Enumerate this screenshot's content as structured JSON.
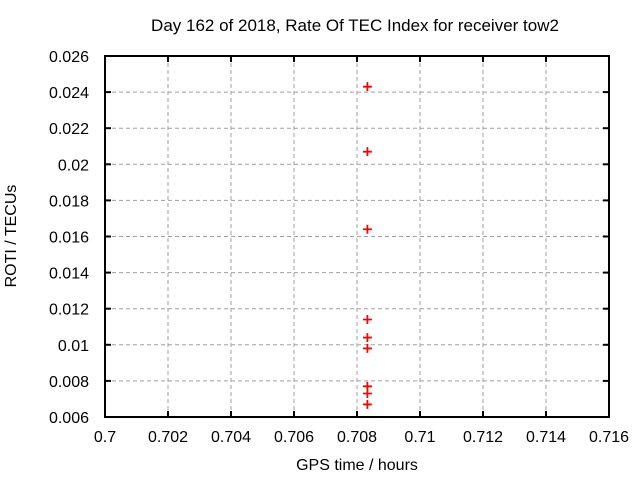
{
  "chart_data": {
    "type": "scatter",
    "title": "Day 162 of 2018, Rate Of TEC Index for receiver tow2",
    "xlabel": "GPS time / hours",
    "ylabel": "ROTI / TECUs",
    "xlim": [
      0.7,
      0.716
    ],
    "ylim": [
      0.006,
      0.026
    ],
    "grid": true,
    "legend_position": "none",
    "marker": {
      "shape": "plus",
      "color": "#ff0000"
    },
    "xticks": {
      "values": [
        0.7,
        0.702,
        0.704,
        0.706,
        0.708,
        0.71,
        0.712,
        0.714,
        0.716
      ],
      "labels": [
        "0.7",
        "0.702",
        "0.704",
        "0.706",
        "0.708",
        "0.71",
        "0.712",
        "0.714",
        "0.716"
      ]
    },
    "yticks": {
      "values": [
        0.006,
        0.008,
        0.01,
        0.012,
        0.014,
        0.016,
        0.018,
        0.02,
        0.022,
        0.024,
        0.026
      ],
      "labels": [
        "0.006",
        "0.008",
        "0.01",
        "0.012",
        "0.014",
        "0.016",
        "0.018",
        "0.02",
        "0.022",
        "0.024",
        "0.026"
      ]
    },
    "series": [
      {
        "name": "ROTI",
        "points": [
          {
            "x": 0.70833,
            "y": 0.0243
          },
          {
            "x": 0.70833,
            "y": 0.0207
          },
          {
            "x": 0.70833,
            "y": 0.0164
          },
          {
            "x": 0.70833,
            "y": 0.0114
          },
          {
            "x": 0.70833,
            "y": 0.0104
          },
          {
            "x": 0.70833,
            "y": 0.0098
          },
          {
            "x": 0.70833,
            "y": 0.0077
          },
          {
            "x": 0.70833,
            "y": 0.0073
          },
          {
            "x": 0.70833,
            "y": 0.0067
          }
        ]
      }
    ]
  },
  "colors": {
    "background": "#ffffff",
    "border": "#000000",
    "grid": "#a0a0a0",
    "marker": "#ff0000",
    "text": "#000000"
  }
}
